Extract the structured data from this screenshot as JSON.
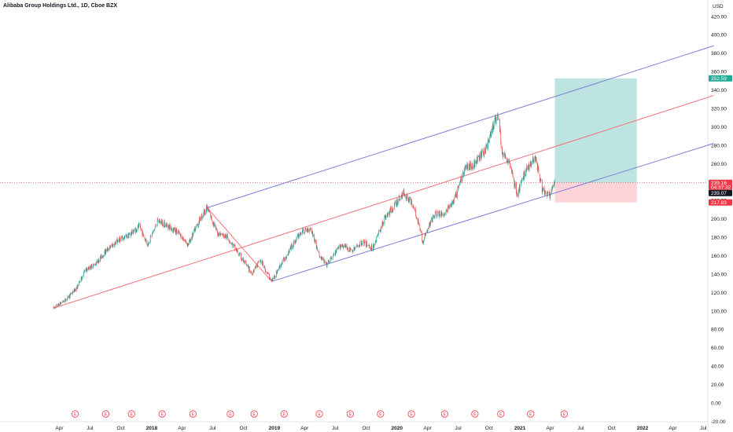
{
  "chart_data": {
    "type": "candlestick",
    "title": "Alibaba Group Holdings Ltd., 1D, Cboe BZX",
    "currency_label": "USD",
    "y_ticks": [
      -20,
      0,
      20,
      40,
      60,
      80,
      100,
      120,
      140,
      160,
      180,
      200,
      220,
      240,
      260,
      280,
      300,
      320,
      340,
      360,
      380,
      400,
      420
    ],
    "ylim": [
      -22,
      433
    ],
    "x_ticks": [
      {
        "label": "Apr",
        "date": "2017-04"
      },
      {
        "label": "Jul",
        "date": "2017-07"
      },
      {
        "label": "Oct",
        "date": "2017-10"
      },
      {
        "label": "2018",
        "date": "2018-01"
      },
      {
        "label": "Apr",
        "date": "2018-04"
      },
      {
        "label": "Jul",
        "date": "2018-07"
      },
      {
        "label": "Oct",
        "date": "2018-10"
      },
      {
        "label": "2019",
        "date": "2019-01"
      },
      {
        "label": "Apr",
        "date": "2019-04"
      },
      {
        "label": "Jul",
        "date": "2019-07"
      },
      {
        "label": "Oct",
        "date": "2019-10"
      },
      {
        "label": "2020",
        "date": "2020-01"
      },
      {
        "label": "Apr",
        "date": "2020-04"
      },
      {
        "label": "Jul",
        "date": "2020-07"
      },
      {
        "label": "Oct",
        "date": "2020-10"
      },
      {
        "label": "2021",
        "date": "2021-01"
      },
      {
        "label": "Apr",
        "date": "2021-04"
      },
      {
        "label": "Jul",
        "date": "2021-07"
      },
      {
        "label": "Oct",
        "date": "2021-10"
      },
      {
        "label": "2022",
        "date": "2022-01"
      },
      {
        "label": "Apr",
        "date": "2022-04"
      },
      {
        "label": "Jul",
        "date": "2022-07"
      }
    ],
    "price_keypoints": [
      [
        "2017-03-15",
        103
      ],
      [
        "2017-04-20",
        112
      ],
      [
        "2017-05-25",
        126
      ],
      [
        "2017-06-15",
        143
      ],
      [
        "2017-07-20",
        152
      ],
      [
        "2017-08-20",
        166
      ],
      [
        "2017-09-25",
        177
      ],
      [
        "2017-10-25",
        182
      ],
      [
        "2017-11-25",
        192
      ],
      [
        "2017-12-20",
        172
      ],
      [
        "2018-01-20",
        198
      ],
      [
        "2018-02-20",
        192
      ],
      [
        "2018-03-20",
        185
      ],
      [
        "2018-04-20",
        172
      ],
      [
        "2018-05-25",
        200
      ],
      [
        "2018-06-15",
        212
      ],
      [
        "2018-07-15",
        185
      ],
      [
        "2018-08-15",
        180
      ],
      [
        "2018-09-20",
        160
      ],
      [
        "2018-10-25",
        141
      ],
      [
        "2018-11-20",
        155
      ],
      [
        "2018-12-24",
        132
      ],
      [
        "2019-01-20",
        150
      ],
      [
        "2019-02-25",
        172
      ],
      [
        "2019-03-20",
        185
      ],
      [
        "2019-04-20",
        190
      ],
      [
        "2019-05-15",
        160
      ],
      [
        "2019-06-05",
        150
      ],
      [
        "2019-07-20",
        172
      ],
      [
        "2019-08-20",
        165
      ],
      [
        "2019-09-20",
        175
      ],
      [
        "2019-10-20",
        168
      ],
      [
        "2019-11-25",
        200
      ],
      [
        "2019-12-20",
        212
      ],
      [
        "2020-01-20",
        228
      ],
      [
        "2020-02-20",
        215
      ],
      [
        "2020-03-18",
        175
      ],
      [
        "2020-04-20",
        205
      ],
      [
        "2020-05-20",
        205
      ],
      [
        "2020-06-20",
        220
      ],
      [
        "2020-07-20",
        255
      ],
      [
        "2020-08-20",
        260
      ],
      [
        "2020-09-20",
        275
      ],
      [
        "2020-10-27",
        315
      ],
      [
        "2020-11-10",
        270
      ],
      [
        "2020-12-01",
        262
      ],
      [
        "2020-12-24",
        225
      ],
      [
        "2021-01-15",
        250
      ],
      [
        "2021-02-15",
        268
      ],
      [
        "2021-03-10",
        230
      ],
      [
        "2021-04-01",
        225
      ],
      [
        "2021-04-14",
        239.16
      ]
    ],
    "trend_lines": [
      {
        "color": "#7b7ed6",
        "points": [
          [
            "2018-06-15",
            212
          ],
          [
            "2022-08-01",
            388
          ]
        ]
      },
      {
        "color": "#f2707a",
        "points": [
          [
            "2017-03-15",
            103
          ],
          [
            "2022-08-01",
            334
          ]
        ]
      },
      {
        "color": "#7b7ed6",
        "points": [
          [
            "2018-12-24",
            132
          ],
          [
            "2022-08-01",
            282
          ]
        ]
      },
      {
        "color": "#f2707a",
        "points": [
          [
            "2018-06-15",
            212
          ],
          [
            "2018-12-24",
            132
          ]
        ]
      }
    ],
    "position": {
      "type": "long",
      "entry": 239.07,
      "target": 352.59,
      "stop": 217.83,
      "start": "2021-04-15",
      "end": "2021-12-15"
    },
    "price_tags": [
      {
        "value": 352.59,
        "label": "352.59",
        "color": "#22ab94"
      },
      {
        "value": 239.16,
        "label": "239.16",
        "sublabel": "04:37:32",
        "color": "#f23645"
      },
      {
        "value": 239.07,
        "label": "239.07",
        "color": "#131722"
      },
      {
        "value": 217.83,
        "label": "217.83",
        "color": "#f23645"
      }
    ],
    "earnings_markers": [
      "2017-05-18",
      "2017-08-17",
      "2017-11-02",
      "2018-02-01",
      "2018-05-04",
      "2018-08-23",
      "2018-11-02",
      "2019-01-30",
      "2019-05-15",
      "2019-08-15",
      "2019-11-13",
      "2020-02-13",
      "2020-05-22",
      "2020-08-20",
      "2020-11-05",
      "2021-02-02",
      "2021-05-13"
    ],
    "earnings_label": "E",
    "colors": {
      "up": "#26a69a",
      "down": "#ef5350",
      "reward": "#b2dfdb",
      "risk": "#ffcdd2"
    }
  }
}
